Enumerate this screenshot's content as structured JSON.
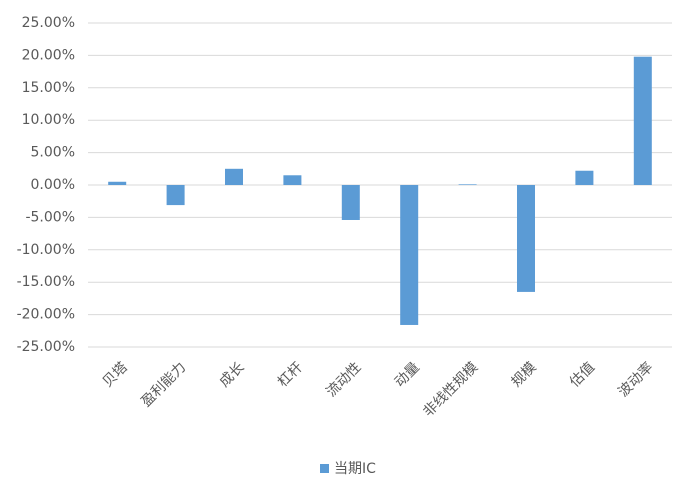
{
  "chart_data": {
    "type": "bar",
    "categories": [
      "贝塔",
      "盈利能力",
      "成长",
      "杠杆",
      "流动性",
      "动量",
      "非线性规模",
      "规模",
      "估值",
      "波动率"
    ],
    "series": [
      {
        "name": "当期IC",
        "color": "#5b9bd5",
        "values": [
          0.5,
          -3.1,
          2.5,
          1.5,
          -5.4,
          -21.6,
          0.1,
          -16.5,
          2.2,
          19.8
        ]
      }
    ],
    "ylim": [
      -25,
      25
    ],
    "yticks": [
      {
        "value": -25,
        "label": "-25.00%"
      },
      {
        "value": -20,
        "label": "-20.00%"
      },
      {
        "value": -15,
        "label": "-15.00%"
      },
      {
        "value": -10,
        "label": "-10.00%"
      },
      {
        "value": -5,
        "label": "-5.00%"
      },
      {
        "value": 0,
        "label": "0.00%"
      },
      {
        "value": 5,
        "label": "5.00%"
      },
      {
        "value": 10,
        "label": "10.00%"
      },
      {
        "value": 15,
        "label": "15.00%"
      },
      {
        "value": 20,
        "label": "20.00%"
      },
      {
        "value": 25,
        "label": "25.00%"
      }
    ],
    "grid": true,
    "legend": "bottom"
  }
}
